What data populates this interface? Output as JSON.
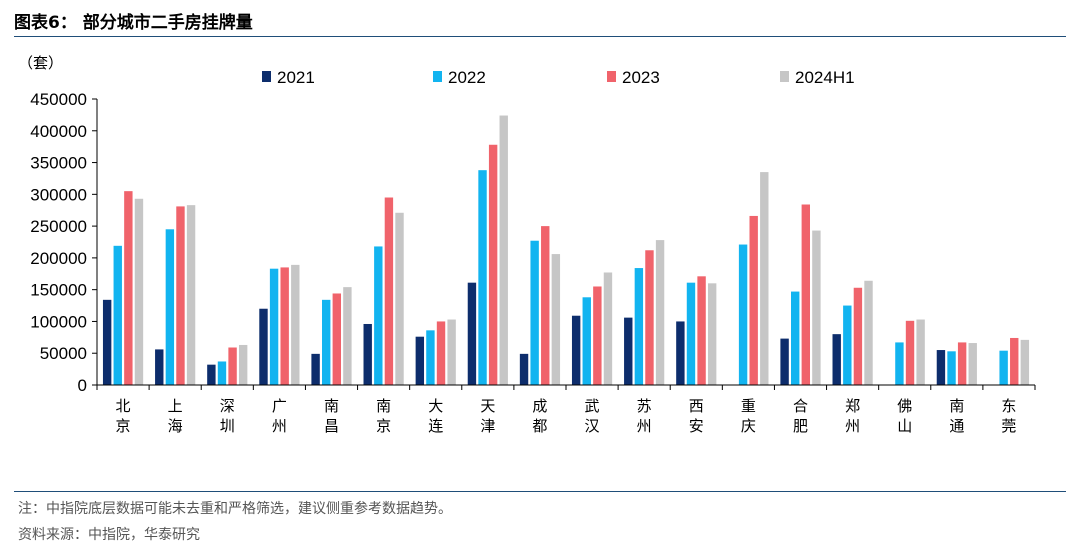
{
  "header": {
    "title": "图表6：  部分城市二手房挂牌量"
  },
  "footer": {
    "note": "注：中指院底层数据可能未去重和严格筛选，建议侧重参考数据趋势。",
    "source": "资料来源：中指院，华泰研究"
  },
  "chart_data": {
    "type": "bar",
    "unit_label": "（套）",
    "categories": [
      "北京",
      "上海",
      "深圳",
      "广州",
      "南昌",
      "南京",
      "大连",
      "天津",
      "成都",
      "武汉",
      "苏州",
      "西安",
      "重庆",
      "合肥",
      "郑州",
      "佛山",
      "南通",
      "东莞"
    ],
    "series": [
      {
        "name": "2021",
        "color": "#0d2d6c",
        "values": [
          134000,
          56000,
          32000,
          120000,
          49000,
          96000,
          76000,
          161000,
          49000,
          109000,
          106000,
          100000,
          null,
          73000,
          80000,
          null,
          55000,
          null
        ]
      },
      {
        "name": "2022",
        "color": "#12b4f0",
        "values": [
          219000,
          245000,
          37000,
          183000,
          134000,
          218000,
          86000,
          338000,
          227000,
          138000,
          184000,
          161000,
          221000,
          147000,
          125000,
          67000,
          53000,
          54000
        ]
      },
      {
        "name": "2023",
        "color": "#f0636b",
        "values": [
          305000,
          281000,
          59000,
          185000,
          144000,
          295000,
          100000,
          378000,
          250000,
          155000,
          212000,
          171000,
          266000,
          284000,
          153000,
          101000,
          67000,
          74000
        ]
      },
      {
        "name": "2024H1",
        "color": "#c6c6c6",
        "values": [
          293000,
          283000,
          63000,
          189000,
          154000,
          271000,
          103000,
          424000,
          206000,
          177000,
          228000,
          160000,
          335000,
          243000,
          164000,
          103000,
          66000,
          71000
        ]
      }
    ],
    "ylim": [
      0,
      450000
    ],
    "yticks": [
      0,
      50000,
      100000,
      150000,
      200000,
      250000,
      300000,
      350000,
      400000,
      450000
    ],
    "grid": false,
    "legend_position": "top"
  }
}
